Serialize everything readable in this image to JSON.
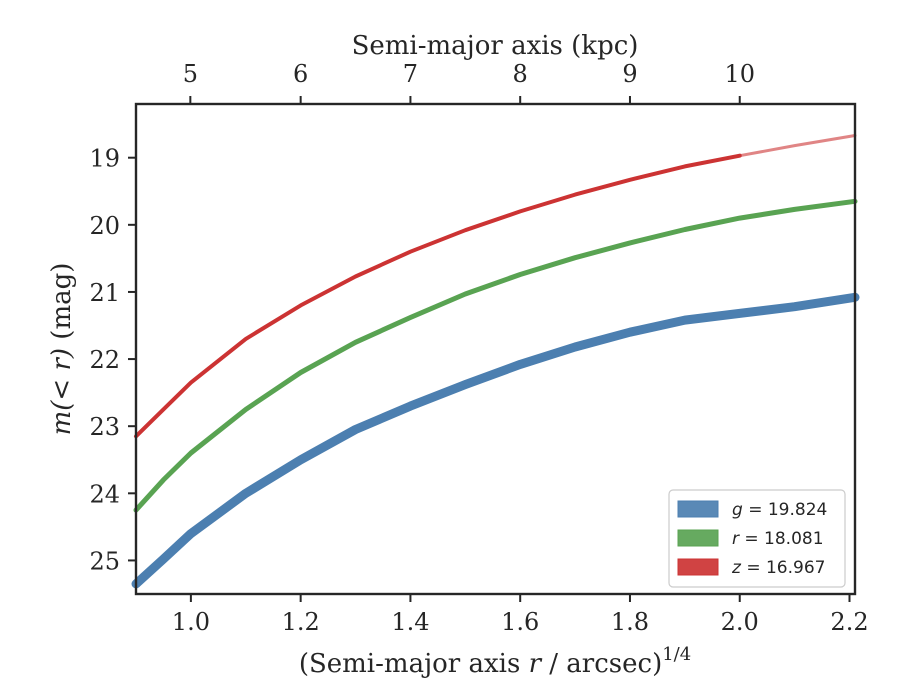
{
  "chart_data": {
    "type": "line",
    "xlabel_prefix": "(Semi-major axis ",
    "xlabel_var": "r",
    "xlabel_suffix": " / arcsec)",
    "xlabel_exp": "1/4",
    "ylabel_var": "m",
    "ylabel_arg": "(< r)",
    "ylabel_unit": " (mag)",
    "top_xlabel": "Semi-major axis (kpc)",
    "xlim": [
      0.9,
      2.21
    ],
    "ylim": [
      25.5,
      18.2
    ],
    "y_inverted": true,
    "x_ticks": [
      1.0,
      1.2,
      1.4,
      1.6,
      1.8,
      2.0,
      2.2
    ],
    "x_tick_labels": [
      "1.0",
      "1.2",
      "1.4",
      "1.6",
      "1.8",
      "2.0",
      "2.2"
    ],
    "y_ticks": [
      19,
      20,
      21,
      22,
      23,
      24,
      25
    ],
    "y_tick_labels": [
      "19",
      "20",
      "21",
      "22",
      "23",
      "24",
      "25"
    ],
    "top_ticks_x": [
      0.999,
      1.2,
      1.4,
      1.6,
      1.8,
      2.0
    ],
    "top_tick_labels": [
      "5",
      "6",
      "7",
      "8",
      "9",
      "10"
    ],
    "grid": false,
    "legend_position": "lower-right",
    "series": [
      {
        "name_var": "g",
        "name_value": " = 19.824",
        "color": "#4c7fb0",
        "x": [
          0.9,
          0.95,
          1.0,
          1.1,
          1.2,
          1.3,
          1.4,
          1.5,
          1.6,
          1.7,
          1.8,
          1.9,
          2.0,
          2.1,
          2.21
        ],
        "y": [
          25.35,
          24.98,
          24.6,
          24.0,
          23.5,
          23.05,
          22.7,
          22.38,
          22.08,
          21.82,
          21.6,
          21.42,
          21.32,
          21.22,
          21.08
        ]
      },
      {
        "name_var": "r",
        "name_value": " = 18.081",
        "color": "#59a352",
        "x": [
          0.9,
          0.95,
          1.0,
          1.1,
          1.2,
          1.3,
          1.4,
          1.5,
          1.6,
          1.7,
          1.8,
          1.9,
          2.0,
          2.1,
          2.21
        ],
        "y": [
          24.25,
          23.8,
          23.4,
          22.75,
          22.2,
          21.75,
          21.38,
          21.03,
          20.74,
          20.49,
          20.27,
          20.07,
          19.9,
          19.77,
          19.65
        ]
      },
      {
        "name_var": "z",
        "name_value": " = 16.967",
        "color": "#cc3333",
        "x": [
          0.9,
          0.95,
          1.0,
          1.1,
          1.2,
          1.3,
          1.4,
          1.5,
          1.6,
          1.7,
          1.8,
          1.9,
          2.0,
          2.1,
          2.21
        ],
        "y": [
          23.15,
          22.75,
          22.35,
          21.7,
          21.2,
          20.77,
          20.4,
          20.08,
          19.8,
          19.55,
          19.33,
          19.13,
          18.97,
          18.82,
          18.67
        ],
        "solid_until_x": 2.0
      }
    ]
  }
}
